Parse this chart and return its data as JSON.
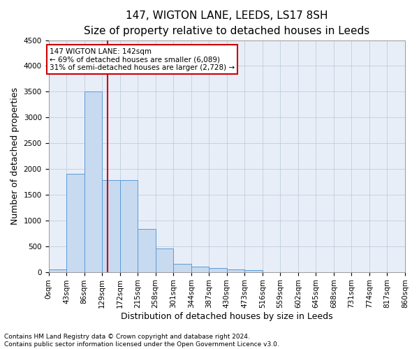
{
  "title": "147, WIGTON LANE, LEEDS, LS17 8SH",
  "subtitle": "Size of property relative to detached houses in Leeds",
  "xlabel": "Distribution of detached houses by size in Leeds",
  "ylabel": "Number of detached properties",
  "footnote1": "Contains HM Land Registry data © Crown copyright and database right 2024.",
  "footnote2": "Contains public sector information licensed under the Open Government Licence v3.0.",
  "property_label": "147 WIGTON LANE: 142sqm",
  "annotation_line1": "← 69% of detached houses are smaller (6,089)",
  "annotation_line2": "31% of semi-detached houses are larger (2,728) →",
  "property_size_sqm": 142,
  "bin_edges": [
    0,
    43,
    86,
    129,
    172,
    215,
    258,
    301,
    344,
    387,
    430,
    473,
    516,
    559,
    602,
    645,
    688,
    731,
    774,
    817,
    860
  ],
  "bar_heights": [
    50,
    1900,
    3500,
    1780,
    1780,
    840,
    450,
    160,
    100,
    70,
    55,
    40,
    0,
    0,
    0,
    0,
    0,
    0,
    0,
    0
  ],
  "bar_color": "#c8daf0",
  "bar_edge_color": "#5b9bd5",
  "vline_x": 142,
  "vline_color": "#cc0000",
  "annotation_box_color": "#cc0000",
  "background_color": "#e8eef8",
  "ylim": [
    0,
    4500
  ],
  "yticks": [
    0,
    500,
    1000,
    1500,
    2000,
    2500,
    3000,
    3500,
    4000,
    4500
  ],
  "title_fontsize": 11,
  "subtitle_fontsize": 9.5,
  "label_fontsize": 9,
  "tick_fontsize": 7.5,
  "footnote_fontsize": 6.5
}
